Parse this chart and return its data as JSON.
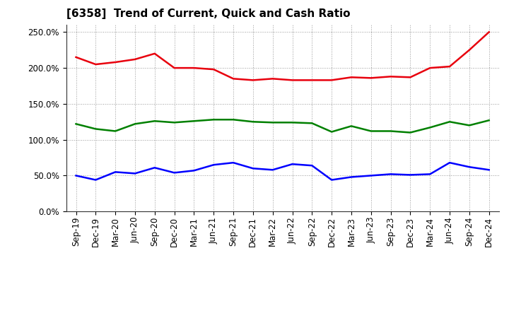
{
  "title": "[6358]  Trend of Current, Quick and Cash Ratio",
  "x_labels": [
    "Sep-19",
    "Dec-19",
    "Mar-20",
    "Jun-20",
    "Sep-20",
    "Dec-20",
    "Mar-21",
    "Jun-21",
    "Sep-21",
    "Dec-21",
    "Mar-22",
    "Jun-22",
    "Sep-22",
    "Dec-22",
    "Mar-23",
    "Jun-23",
    "Sep-23",
    "Dec-23",
    "Mar-24",
    "Jun-24",
    "Sep-24",
    "Dec-24"
  ],
  "current_ratio": [
    215,
    205,
    208,
    212,
    220,
    200,
    200,
    198,
    185,
    183,
    185,
    183,
    183,
    183,
    187,
    186,
    188,
    187,
    200,
    202,
    225,
    250
  ],
  "quick_ratio": [
    122,
    115,
    112,
    122,
    126,
    124,
    126,
    128,
    128,
    125,
    124,
    124,
    123,
    111,
    119,
    112,
    112,
    110,
    117,
    125,
    120,
    127
  ],
  "cash_ratio": [
    50,
    44,
    55,
    53,
    61,
    54,
    57,
    65,
    68,
    60,
    58,
    66,
    64,
    44,
    48,
    50,
    52,
    51,
    52,
    68,
    62,
    58
  ],
  "ylim": [
    0,
    260
  ],
  "yticks": [
    0,
    50,
    100,
    150,
    200,
    250
  ],
  "current_color": "#e8000d",
  "quick_color": "#008000",
  "cash_color": "#0000ff",
  "background_color": "#ffffff",
  "plot_background": "#ffffff",
  "grid_color": "#999999",
  "line_width": 1.8,
  "title_fontsize": 11,
  "tick_fontsize": 8.5,
  "legend_fontsize": 9
}
